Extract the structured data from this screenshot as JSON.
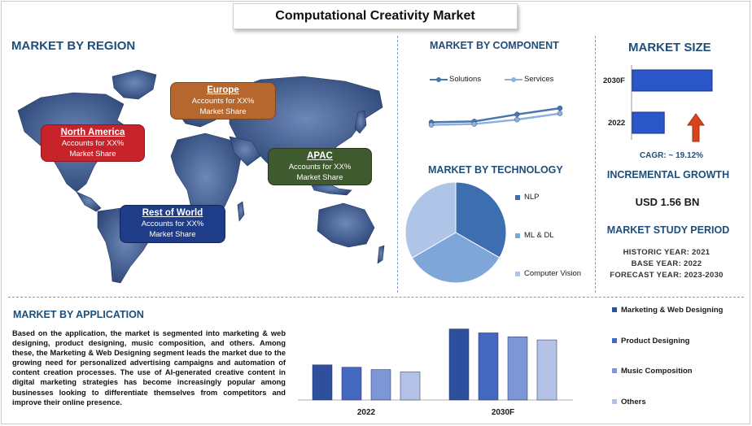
{
  "title": "Computational Creativity Market",
  "region": {
    "heading": "MARKET BY REGION",
    "boxes": [
      {
        "name": "North America",
        "line1": "Accounts for XX%",
        "line2": "Market Share",
        "color": "#c8232a"
      },
      {
        "name": "Europe",
        "line1": "Accounts for XX%",
        "line2": "Market Share",
        "color": "#b5672e"
      },
      {
        "name": "APAC",
        "line1": "Accounts for XX%",
        "line2": "Market Share",
        "color": "#3f5a2e"
      },
      {
        "name": "Rest of World",
        "line1": "Accounts for XX%",
        "line2": "Market Share",
        "color": "#1f3c88"
      }
    ]
  },
  "component": {
    "heading": "MARKET BY COMPONENT",
    "legend": [
      "Solutions",
      "Services"
    ]
  },
  "technology": {
    "heading": "MARKET BY TECHNOLOGY",
    "legend": [
      "NLP",
      "ML & DL",
      "Computer Vision"
    ]
  },
  "size": {
    "heading": "MARKET SIZE",
    "bar_labels": [
      "2030F",
      "2022"
    ],
    "cagr": "CAGR:  ~ 19.12%",
    "growth_heading": "INCREMENTAL GROWTH",
    "growth_value": "USD 1.56 BN",
    "period_heading": "MARKET STUDY PERIOD",
    "historic": "HISTORIC YEAR: 2021",
    "base": "BASE YEAR: 2022",
    "forecast": "FORECAST YEAR: 2023-2030"
  },
  "application": {
    "heading": "MARKET BY APPLICATION",
    "text": "Based on the application, the market is segmented into marketing & web designing, product designing, music composition, and others. Among these, the Marketing & Web Designing segment leads the market due to the growing need for personalized advertising campaigns and automation of content creation processes. The use of AI-generated creative content in digital marketing strategies has become increasingly popular among businesses looking to differentiate themselves from competitors and improve their online presence.",
    "legend": [
      "Marketing & Web Designing",
      "Product Designing",
      "Music Composition",
      "Others"
    ]
  },
  "colors": {
    "heading": "#1f4e79",
    "solutions": "#4a76b0",
    "services": "#8fb0d8",
    "nlp": "#3d6fb0",
    "mldl": "#7fa6d9",
    "cv": "#aec5e8",
    "app1": "#2d4f9e",
    "app2": "#4468c0",
    "app3": "#7d96d6",
    "app4": "#b5c2e8",
    "size_bar": "#2a56c8",
    "arrow": "#d8431c"
  },
  "chart_data": [
    {
      "type": "line",
      "title": "MARKET BY COMPONENT",
      "x": [
        1,
        2,
        3,
        4
      ],
      "series": [
        {
          "name": "Solutions",
          "values": [
            2.0,
            2.1,
            2.9,
            3.6
          ]
        },
        {
          "name": "Services",
          "values": [
            1.7,
            1.8,
            2.3,
            3.0
          ]
        }
      ],
      "ylim": [
        0,
        5
      ],
      "legend": "top"
    },
    {
      "type": "pie",
      "title": "MARKET BY TECHNOLOGY",
      "categories": [
        "NLP",
        "ML & DL",
        "Computer Vision"
      ],
      "values": [
        33.3,
        33.3,
        33.4
      ],
      "legend": "right"
    },
    {
      "type": "bar",
      "title": "MARKET SIZE",
      "categories": [
        "2030F",
        "2022"
      ],
      "values": [
        100,
        40
      ],
      "orientation": "horizontal"
    },
    {
      "type": "bar",
      "title": "MARKET BY APPLICATION",
      "categories": [
        "2022",
        "2030F"
      ],
      "series": [
        {
          "name": "Marketing & Web Designing",
          "values": [
            45,
            91
          ]
        },
        {
          "name": "Product Designing",
          "values": [
            42,
            86
          ]
        },
        {
          "name": "Music Composition",
          "values": [
            39,
            81
          ]
        },
        {
          "name": "Others",
          "values": [
            36,
            77
          ]
        }
      ],
      "ylim": [
        0,
        100
      ],
      "legend": "right"
    }
  ]
}
